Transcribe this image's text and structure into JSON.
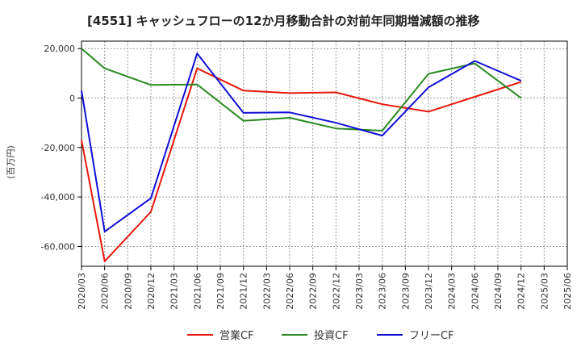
{
  "chart_data": {
    "type": "line",
    "title": "[4551]  キャッシュフローの12か月移動合計の対前年同期増減額の推移",
    "ylabel": "(百万円)",
    "xlabel": "",
    "ylim": [
      -68000,
      23000
    ],
    "yticks": [
      20000,
      0,
      -20000,
      -40000,
      -60000
    ],
    "ytick_labels": [
      "20,000",
      "0",
      "-20,000",
      "-40,000",
      "-60,000"
    ],
    "categories": [
      "2020/03",
      "2020/06",
      "2020/09",
      "2020/12",
      "2021/03",
      "2021/06",
      "2021/09",
      "2021/12",
      "2022/03",
      "2022/06",
      "2022/09",
      "2022/12",
      "2023/03",
      "2023/06",
      "2023/09",
      "2023/12",
      "2024/03",
      "2024/06",
      "2024/09",
      "2024/12",
      "2025/03",
      "2025/06"
    ],
    "series": [
      {
        "name": "営業CF",
        "color": "#e8180c",
        "values": [
          -17000,
          -66000,
          null,
          -46000,
          null,
          12000,
          null,
          3000,
          null,
          2000,
          null,
          2300,
          null,
          -2500,
          null,
          -5500,
          null,
          500,
          null,
          6500,
          null,
          null
        ]
      },
      {
        "name": "投資CF",
        "color": "#2a8a21",
        "values": [
          20000,
          12000,
          null,
          5300,
          null,
          5500,
          null,
          -9200,
          null,
          -8000,
          null,
          -12300,
          null,
          -13200,
          null,
          9800,
          null,
          14000,
          null,
          0,
          null,
          null
        ]
      },
      {
        "name": "フリーCF",
        "color": "#0f0fd6",
        "values": [
          3000,
          -54000,
          null,
          -40500,
          null,
          18000,
          null,
          -6000,
          null,
          -5800,
          null,
          -10000,
          null,
          -15200,
          null,
          4300,
          null,
          15000,
          null,
          7000,
          null,
          null
        ]
      }
    ],
    "grid": true,
    "legend_position": "bottom"
  }
}
